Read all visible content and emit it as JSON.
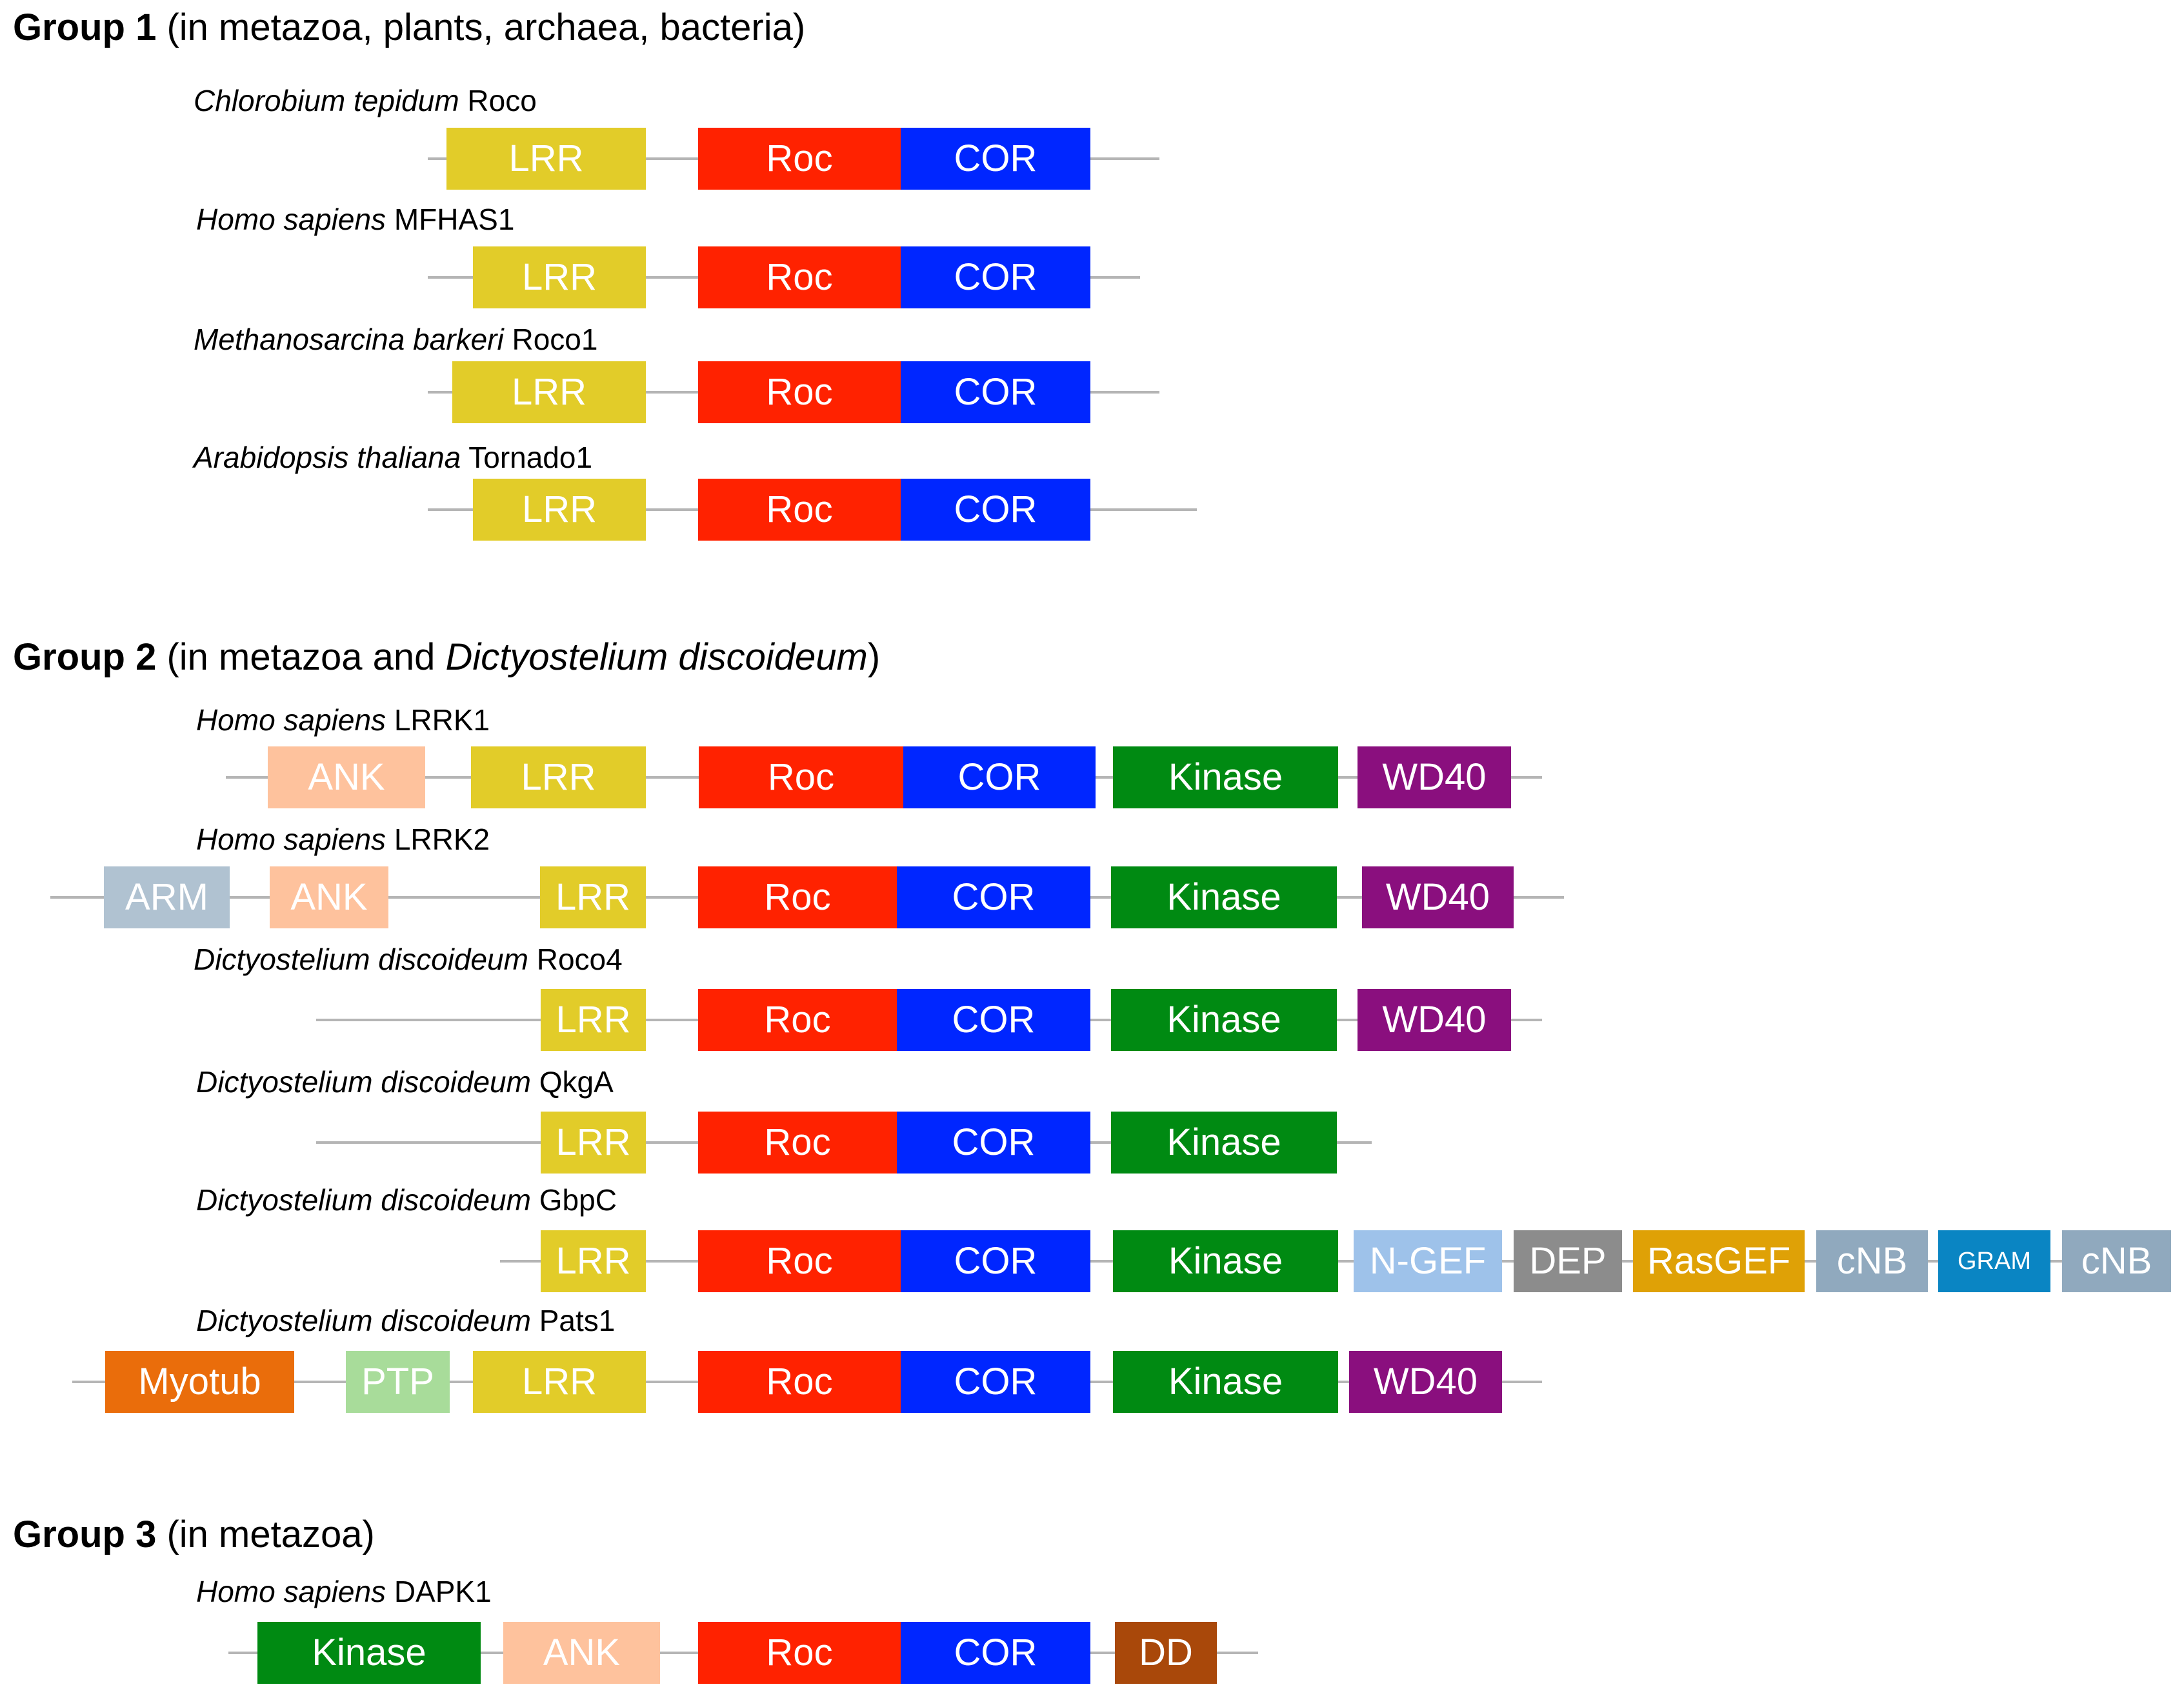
{
  "colors": {
    "LRR": "#e2cc29",
    "Roc": "#ff2200",
    "COR": "#0026ff",
    "Kinase": "#008a12",
    "WD40": "#8a0f7e",
    "ANK": "#fec29d",
    "ARM": "#b0c2d1",
    "N-GEF": "#9ec2ea",
    "DEP": "#8c8c8c",
    "RasGEF": "#dfa106",
    "cNB": "#90a9be",
    "GRAM": "#0a85c3",
    "Myotub": "#ea6d0b",
    "PTP": "#a8dc9a",
    "DD": "#a9480a",
    "backbone": "#b5b5b5"
  },
  "groups": [
    {
      "name": "Group 1",
      "desc_parts": [
        {
          "text": " (in metazoa, plants, archaea, bacteria)",
          "italic": false
        }
      ],
      "proteins": [
        {
          "species": "Chlorobium tepidum",
          "name": " Roco",
          "domains": [
            {
              "label": "LRR",
              "type": "LRR"
            },
            {
              "label": "Roc",
              "type": "Roc"
            },
            {
              "label": "COR",
              "type": "COR"
            }
          ]
        },
        {
          "species": "Homo sapiens",
          "name": " MFHAS1",
          "domains": [
            {
              "label": "LRR",
              "type": "LRR"
            },
            {
              "label": "Roc",
              "type": "Roc"
            },
            {
              "label": "COR",
              "type": "COR"
            }
          ]
        },
        {
          "species": "Methanosarcina barkeri",
          "name": " Roco1",
          "domains": [
            {
              "label": "LRR",
              "type": "LRR"
            },
            {
              "label": "Roc",
              "type": "Roc"
            },
            {
              "label": "COR",
              "type": "COR"
            }
          ]
        },
        {
          "species": "Arabidopsis thaliana",
          "name": " Tornado1",
          "domains": [
            {
              "label": "LRR",
              "type": "LRR"
            },
            {
              "label": "Roc",
              "type": "Roc"
            },
            {
              "label": "COR",
              "type": "COR"
            }
          ]
        }
      ]
    },
    {
      "name": "Group 2",
      "desc_parts": [
        {
          "text": " (in metazoa and ",
          "italic": false
        },
        {
          "text": "Dictyostelium discoideum",
          "italic": true
        },
        {
          "text": ")",
          "italic": false
        }
      ],
      "proteins": [
        {
          "species": "Homo sapiens",
          "name": " LRRK1",
          "domains": [
            {
              "label": "ANK",
              "type": "ANK"
            },
            {
              "label": "LRR",
              "type": "LRR"
            },
            {
              "label": "Roc",
              "type": "Roc"
            },
            {
              "label": "COR",
              "type": "COR"
            },
            {
              "label": "Kinase",
              "type": "Kinase"
            },
            {
              "label": "WD40",
              "type": "WD40"
            }
          ]
        },
        {
          "species": "Homo sapiens",
          "name": " LRRK2",
          "domains": [
            {
              "label": "ARM",
              "type": "ARM"
            },
            {
              "label": "ANK",
              "type": "ANK"
            },
            {
              "label": "LRR",
              "type": "LRR"
            },
            {
              "label": "Roc",
              "type": "Roc"
            },
            {
              "label": "COR",
              "type": "COR"
            },
            {
              "label": "Kinase",
              "type": "Kinase"
            },
            {
              "label": "WD40",
              "type": "WD40"
            }
          ]
        },
        {
          "species": "Dictyostelium discoideum",
          "name": " Roco4",
          "domains": [
            {
              "label": "LRR",
              "type": "LRR"
            },
            {
              "label": "Roc",
              "type": "Roc"
            },
            {
              "label": "COR",
              "type": "COR"
            },
            {
              "label": "Kinase",
              "type": "Kinase"
            },
            {
              "label": "WD40",
              "type": "WD40"
            }
          ]
        },
        {
          "species": "Dictyostelium discoideum",
          "name": " QkgA",
          "domains": [
            {
              "label": "LRR",
              "type": "LRR"
            },
            {
              "label": "Roc",
              "type": "Roc"
            },
            {
              "label": "COR",
              "type": "COR"
            },
            {
              "label": "Kinase",
              "type": "Kinase"
            }
          ]
        },
        {
          "species": "Dictyostelium discoideum",
          "name": " GbpC",
          "domains": [
            {
              "label": "LRR",
              "type": "LRR"
            },
            {
              "label": "Roc",
              "type": "Roc"
            },
            {
              "label": "COR",
              "type": "COR"
            },
            {
              "label": "Kinase",
              "type": "Kinase"
            },
            {
              "label": "N-GEF",
              "type": "N-GEF"
            },
            {
              "label": "DEP",
              "type": "DEP"
            },
            {
              "label": "RasGEF",
              "type": "RasGEF"
            },
            {
              "label": "cNB",
              "type": "cNB"
            },
            {
              "label": "GRAM",
              "type": "GRAM"
            },
            {
              "label": "cNB",
              "type": "cNB"
            }
          ]
        },
        {
          "species": "Dictyostelium discoideum",
          "name": " Pats1",
          "domains": [
            {
              "label": "Myotub",
              "type": "Myotub"
            },
            {
              "label": "PTP",
              "type": "PTP"
            },
            {
              "label": "LRR",
              "type": "LRR"
            },
            {
              "label": "Roc",
              "type": "Roc"
            },
            {
              "label": "COR",
              "type": "COR"
            },
            {
              "label": "Kinase",
              "type": "Kinase"
            },
            {
              "label": "WD40",
              "type": "WD40"
            }
          ]
        }
      ]
    },
    {
      "name": "Group 3",
      "desc_parts": [
        {
          "text": " (in metazoa)",
          "italic": false
        }
      ],
      "proteins": [
        {
          "species": "Homo sapiens",
          "name": " DAPK1",
          "domains": [
            {
              "label": "Kinase",
              "type": "Kinase"
            },
            {
              "label": "ANK",
              "type": "ANK"
            },
            {
              "label": "Roc",
              "type": "Roc"
            },
            {
              "label": "COR",
              "type": "COR"
            },
            {
              "label": "DD",
              "type": "DD"
            }
          ]
        }
      ]
    }
  ]
}
